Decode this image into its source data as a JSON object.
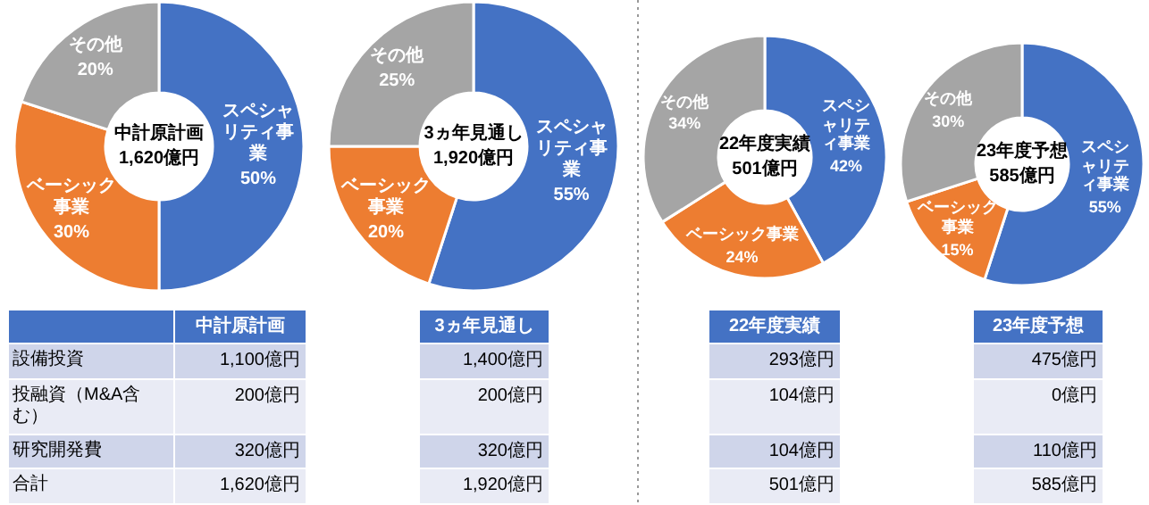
{
  "chart_data": [
    {
      "type": "donut",
      "title": "中計原計画",
      "subtitle": "1,620億円",
      "categories": [
        "スペシャリティ事業",
        "ベーシック事業",
        "その他"
      ],
      "values": [
        50,
        30,
        20
      ],
      "value_labels": [
        "50%",
        "30%",
        "20%"
      ],
      "colors": [
        "#4472c4",
        "#ed7d31",
        "#a5a5a5"
      ]
    },
    {
      "type": "donut",
      "title": "3ヵ年見通し",
      "subtitle": "1,920億円",
      "categories": [
        "スペシャリティ事業",
        "ベーシック事業",
        "その他"
      ],
      "values": [
        55,
        20,
        25
      ],
      "value_labels": [
        "55%",
        "20%",
        "25%"
      ],
      "colors": [
        "#4472c4",
        "#ed7d31",
        "#a5a5a5"
      ]
    },
    {
      "type": "donut",
      "title": "22年度実績",
      "subtitle": "501億円",
      "categories": [
        "スペシャリティ事業",
        "ベーシック事業",
        "その他"
      ],
      "values": [
        42,
        24,
        34
      ],
      "value_labels": [
        "42%",
        "24%",
        "34%"
      ],
      "colors": [
        "#4472c4",
        "#ed7d31",
        "#a5a5a5"
      ]
    },
    {
      "type": "donut",
      "title": "23年度予想",
      "subtitle": "585億円",
      "categories": [
        "スペシャリティ事業",
        "ベーシック事業",
        "その他"
      ],
      "values": [
        55,
        15,
        30
      ],
      "value_labels": [
        "55%",
        "15%",
        "30%"
      ],
      "colors": [
        "#4472c4",
        "#ed7d31",
        "#a5a5a5"
      ]
    },
    {
      "type": "other",
      "categories": [
        "設備投資",
        "投融資（M&A含む）",
        "研究開発費",
        "合計"
      ],
      "annotations": [
        "中計原計画",
        "3ヵ年見通し",
        "22年度実績",
        "23年度予想",
        "1,100億円",
        "1,400億円",
        "293億円",
        "475億円",
        "200億円",
        "200億円",
        "104億円",
        "0億円",
        "320億円",
        "320億円",
        "104億円",
        "110億円",
        "1,620億円",
        "1,920億円",
        "501億円",
        "585億円"
      ]
    }
  ]
}
